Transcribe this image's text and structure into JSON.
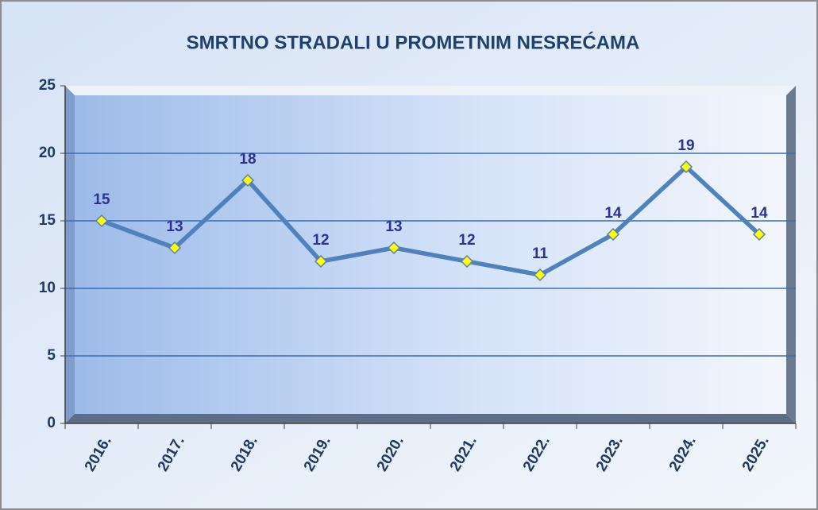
{
  "chart_data": {
    "type": "line",
    "title": "SMRTNO STRADALI U PROMETNIM NESREĆAMA",
    "categories": [
      "2016.",
      "2017.",
      "2018.",
      "2019.",
      "2020.",
      "2021.",
      "2022.",
      "2023.",
      "2024.",
      "2025."
    ],
    "values": [
      15,
      13,
      18,
      12,
      13,
      12,
      11,
      14,
      19,
      14
    ],
    "color": "#4f81bd",
    "marker_color": "#ffff00",
    "ylim": [
      0,
      25
    ],
    "yticks": [
      0,
      5,
      10,
      15,
      20,
      25
    ],
    "grid": true
  }
}
